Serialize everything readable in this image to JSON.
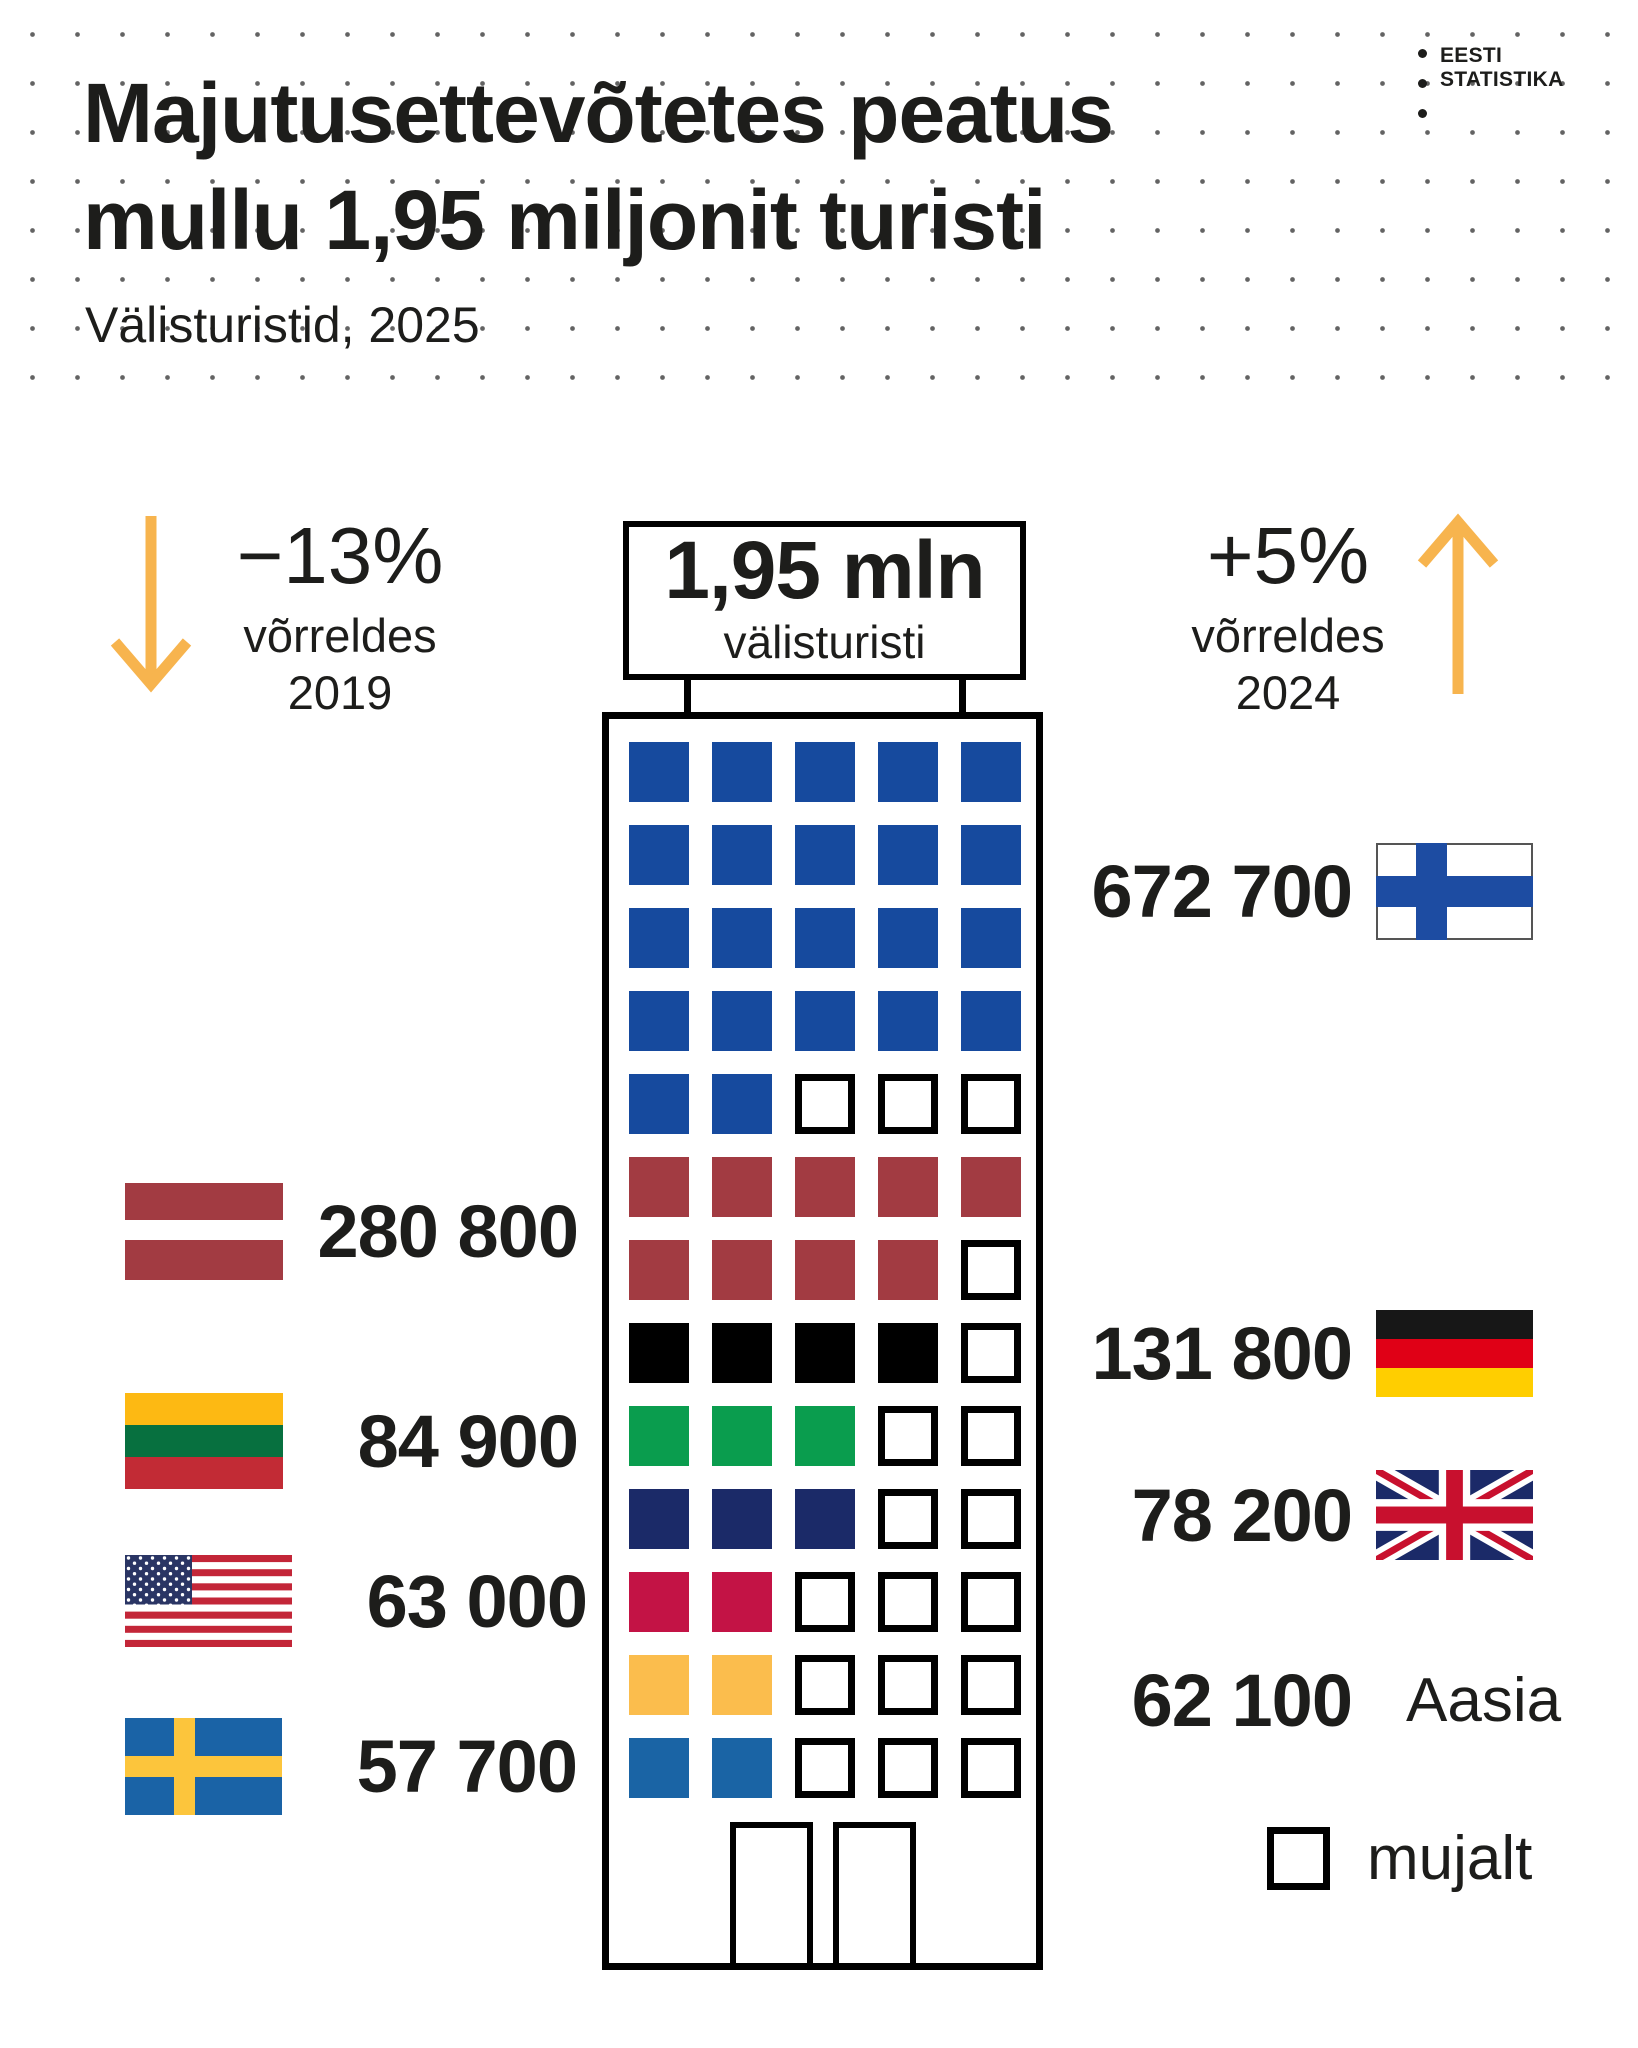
{
  "header": {
    "title_line1": "Majutusettevõtetes peatus",
    "title_line2": "mullu 1,95 miljonit turisti",
    "subtitle": "Välisturistid, 2025",
    "logo": {
      "line1": "EESTI",
      "line2": "STATISTIKA"
    }
  },
  "comparison_left": {
    "value": "−13%",
    "label": "võrreldes",
    "year": "2019",
    "direction": "down"
  },
  "comparison_right": {
    "value": "+5%",
    "label": "võrreldes",
    "year": "2024",
    "direction": "up"
  },
  "sign": {
    "value": "1,95 mln",
    "label": "välisturisti"
  },
  "legend": {
    "label": "mujalt"
  },
  "labels": {
    "finland": "672 700",
    "latvia": "280 800",
    "germany": "131 800",
    "lithuania": "84 900",
    "uk": "78 200",
    "usa": "63 000",
    "asia_value": "62 100",
    "asia_name": "Aasia",
    "sweden": "57 700"
  },
  "colors": {
    "text": "#1d1d1b",
    "arrow": "#F7B44E",
    "finland": "#164A9E",
    "latvia": "#A23B42",
    "germany": "#000000",
    "lithuania": "#0A9D4E",
    "uk": "#1B2A68",
    "usa": "#C31345",
    "asia": "#FBBD4D",
    "sweden": "#1A64A5",
    "empty_outline": "#000000"
  },
  "chart_data": {
    "type": "pictogram",
    "title": "Majutusettevõtetes peatus mullu 1,95 miljonit turisti",
    "subtitle": "Välisturistid, 2025",
    "total_label": "1,95 mln välisturisti",
    "comparisons": [
      {
        "text": "−13% võrreldes 2019",
        "direction": "down"
      },
      {
        "text": "+5% võrreldes 2024",
        "direction": "up"
      }
    ],
    "grid": {
      "columns": 5,
      "rows": 13
    },
    "unit_per_square_estimate": 30000,
    "series": [
      {
        "name": "Finland",
        "flag": "finland-flag",
        "value": 672700,
        "value_label": "672 700",
        "squares": 22,
        "color": "#164A9E",
        "label_side": "right"
      },
      {
        "name": "Latvia",
        "flag": "latvia-flag",
        "value": 280800,
        "value_label": "280 800",
        "squares": 9,
        "color": "#A23B42",
        "label_side": "left"
      },
      {
        "name": "Germany",
        "flag": "germany-flag",
        "value": 131800,
        "value_label": "131 800",
        "squares": 4,
        "color": "#000000",
        "label_side": "right"
      },
      {
        "name": "Lithuania",
        "flag": "lithuania-flag",
        "value": 84900,
        "value_label": "84 900",
        "squares": 3,
        "color": "#0A9D4E",
        "label_side": "left"
      },
      {
        "name": "United Kingdom",
        "flag": "uk-flag",
        "value": 78200,
        "value_label": "78 200",
        "squares": 3,
        "color": "#1B2A68",
        "label_side": "right"
      },
      {
        "name": "USA",
        "flag": "usa-flag",
        "value": 63000,
        "value_label": "63 000",
        "squares": 2,
        "color": "#C31345",
        "label_side": "left"
      },
      {
        "name": "Aasia",
        "flag": null,
        "value": 62100,
        "value_label": "62 100",
        "squares": 2,
        "color": "#FBBD4D",
        "label_side": "right"
      },
      {
        "name": "Sweden",
        "flag": "sweden-flag",
        "value": 57700,
        "value_label": "57 700",
        "squares": 2,
        "color": "#1A64A5",
        "label_side": "left"
      },
      {
        "name": "mujalt",
        "flag": null,
        "value": null,
        "value_label": "mujalt",
        "squares": 18,
        "color": "#FFFFFF",
        "outline": true
      }
    ],
    "waffle_rows": [
      {
        "color": "#164A9E",
        "filled": 5
      },
      {
        "color": "#164A9E",
        "filled": 5
      },
      {
        "color": "#164A9E",
        "filled": 5
      },
      {
        "color": "#164A9E",
        "filled": 5
      },
      {
        "color": "#164A9E",
        "filled": 2
      },
      {
        "color": "#A23B42",
        "filled": 5
      },
      {
        "color": "#A23B42",
        "filled": 4
      },
      {
        "color": "#000000",
        "filled": 4
      },
      {
        "color": "#0A9D4E",
        "filled": 3
      },
      {
        "color": "#1B2A68",
        "filled": 3
      },
      {
        "color": "#C31345",
        "filled": 2
      },
      {
        "color": "#FBBD4D",
        "filled": 2
      },
      {
        "color": "#1A64A5",
        "filled": 2
      }
    ]
  }
}
